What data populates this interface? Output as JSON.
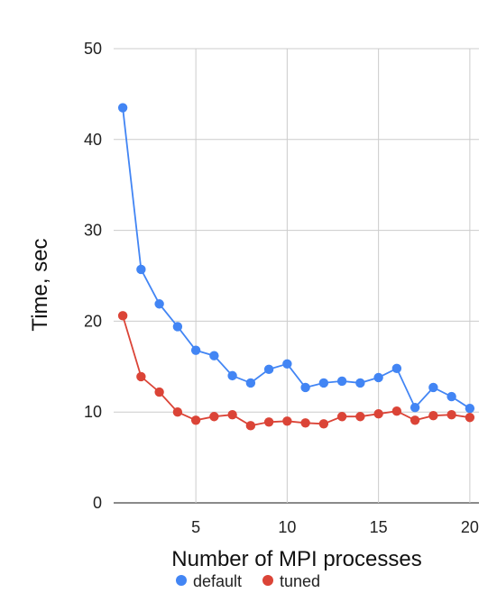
{
  "chart_data": {
    "type": "line",
    "title": "",
    "xlabel": "Number of MPI processes",
    "ylabel": "Time, sec",
    "xlim": [
      0.5,
      20.5
    ],
    "ylim": [
      0,
      50
    ],
    "x_ticks": [
      5,
      10,
      15,
      20
    ],
    "x_tick_labels": [
      "5",
      "10",
      "15",
      "20"
    ],
    "y_ticks": [
      0,
      10,
      20,
      30,
      40,
      50
    ],
    "y_tick_labels": [
      "0",
      "10",
      "20",
      "30",
      "40",
      "50"
    ],
    "grid": true,
    "legend_position": "bottom",
    "x": [
      1,
      2,
      3,
      4,
      5,
      6,
      7,
      8,
      9,
      10,
      11,
      12,
      13,
      14,
      15,
      16,
      17,
      18,
      19,
      20
    ],
    "series": [
      {
        "name": "default",
        "color": "#4285f4",
        "values": [
          43.5,
          25.7,
          21.9,
          19.4,
          16.8,
          16.2,
          14.0,
          13.2,
          14.7,
          15.3,
          12.7,
          13.2,
          13.4,
          13.2,
          13.8,
          14.8,
          10.5,
          12.7,
          11.7,
          10.4
        ]
      },
      {
        "name": "tuned",
        "color": "#db4437",
        "values": [
          20.6,
          13.9,
          12.2,
          10.0,
          9.1,
          9.5,
          9.7,
          8.5,
          8.9,
          9.0,
          8.8,
          8.7,
          9.5,
          9.5,
          9.8,
          10.1,
          9.1,
          9.6,
          9.7,
          9.4
        ]
      }
    ]
  }
}
